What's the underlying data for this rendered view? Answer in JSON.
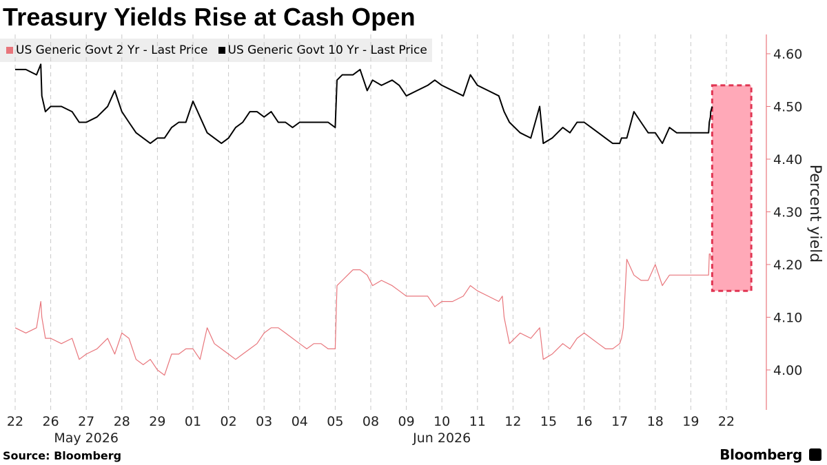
{
  "title": "Treasury Yields Rise at Cash Open",
  "source": "Source: Bloomberg",
  "brand": "Bloomberg",
  "colors": {
    "two_year": "#e8757b",
    "ten_year": "#000000",
    "highlight": "#ffa9b8",
    "highlight_border": "#e03552"
  },
  "chart_data": {
    "type": "line",
    "title": "Treasury Yields Rise at Cash Open",
    "ylabel": "Percent yield",
    "ylim": [
      3.93,
      4.65
    ],
    "yticks": [
      4.0,
      4.1,
      4.2,
      4.3,
      4.4,
      4.5,
      4.6
    ],
    "y_axis_position": "right",
    "grid": "vertical dashed",
    "legend_placement": "top-left",
    "categories": [
      "22",
      "26",
      "27",
      "28",
      "29",
      "01",
      "02",
      "03",
      "04",
      "05",
      "08",
      "09",
      "10",
      "11",
      "12",
      "15",
      "16",
      "17",
      "18",
      "19",
      "22"
    ],
    "month_labels": [
      {
        "label": "May 2026",
        "at": "27"
      },
      {
        "label": "Jun 2026",
        "at": "10"
      }
    ],
    "highlight_region": {
      "from": 19.6,
      "to": 20.7,
      "ymin": 4.15,
      "ymax": 4.54
    },
    "series": [
      {
        "name": "US Generic Govt 2 Yr - Last Price",
        "x": [
          0,
          0.3,
          0.6,
          0.72,
          0.75,
          0.85,
          1.0,
          1.3,
          1.6,
          1.8,
          2.0,
          2.3,
          2.6,
          2.8,
          3.0,
          3.2,
          3.4,
          3.6,
          3.8,
          4.0,
          4.2,
          4.4,
          4.6,
          4.8,
          5.0,
          5.2,
          5.4,
          5.6,
          5.8,
          6.0,
          6.2,
          6.4,
          6.6,
          6.8,
          7.0,
          7.2,
          7.4,
          7.6,
          7.8,
          8.0,
          8.2,
          8.4,
          8.6,
          8.8,
          9.0,
          9.05,
          9.2,
          9.5,
          9.7,
          9.9,
          10.05,
          10.3,
          10.6,
          10.8,
          11.0,
          11.3,
          11.6,
          11.8,
          12.0,
          12.3,
          12.6,
          12.8,
          13.0,
          13.3,
          13.6,
          13.7,
          13.75,
          13.9,
          14.2,
          14.5,
          14.75,
          14.85,
          15.1,
          15.4,
          15.6,
          15.8,
          16.0,
          16.2,
          16.4,
          16.6,
          16.8,
          17.0,
          17.05,
          17.1,
          17.2,
          17.4,
          17.6,
          17.8,
          18.0,
          18.2,
          18.4,
          18.6,
          18.8,
          19.0,
          19.5,
          19.52,
          19.55,
          19.56,
          19.6
        ],
        "values": [
          4.08,
          4.07,
          4.08,
          4.13,
          4.1,
          4.06,
          4.06,
          4.05,
          4.06,
          4.02,
          4.03,
          4.04,
          4.06,
          4.03,
          4.07,
          4.06,
          4.02,
          4.01,
          4.02,
          4.0,
          3.99,
          4.03,
          4.03,
          4.04,
          4.04,
          4.02,
          4.08,
          4.05,
          4.04,
          4.03,
          4.02,
          4.03,
          4.04,
          4.05,
          4.07,
          4.08,
          4.08,
          4.07,
          4.06,
          4.05,
          4.04,
          4.05,
          4.05,
          4.04,
          4.04,
          4.16,
          4.17,
          4.19,
          4.19,
          4.18,
          4.16,
          4.17,
          4.16,
          4.15,
          4.14,
          4.14,
          4.14,
          4.12,
          4.13,
          4.13,
          4.14,
          4.16,
          4.15,
          4.14,
          4.13,
          4.14,
          4.1,
          4.05,
          4.07,
          4.06,
          4.08,
          4.02,
          4.03,
          4.05,
          4.04,
          4.06,
          4.07,
          4.06,
          4.05,
          4.04,
          4.04,
          4.05,
          4.06,
          4.08,
          4.21,
          4.18,
          4.17,
          4.17,
          4.2,
          4.16,
          4.18,
          4.18,
          4.18,
          4.18,
          4.18,
          4.22,
          4.22,
          4.21,
          4.21
        ]
      },
      {
        "name": "US Generic Govt 10 Yr - Last Price",
        "x": [
          0,
          0.3,
          0.6,
          0.72,
          0.75,
          0.85,
          1.0,
          1.3,
          1.6,
          1.8,
          2.0,
          2.3,
          2.6,
          2.8,
          3.0,
          3.2,
          3.4,
          3.6,
          3.8,
          4.0,
          4.2,
          4.4,
          4.6,
          4.8,
          5.0,
          5.2,
          5.4,
          5.6,
          5.8,
          6.0,
          6.2,
          6.4,
          6.6,
          6.8,
          7.0,
          7.2,
          7.4,
          7.6,
          7.8,
          8.0,
          8.2,
          8.4,
          8.6,
          8.8,
          9.0,
          9.05,
          9.2,
          9.5,
          9.7,
          9.9,
          10.05,
          10.3,
          10.6,
          10.8,
          11.0,
          11.3,
          11.6,
          11.8,
          12.0,
          12.3,
          12.6,
          12.8,
          13.0,
          13.3,
          13.6,
          13.7,
          13.75,
          13.9,
          14.2,
          14.5,
          14.75,
          14.85,
          15.1,
          15.4,
          15.6,
          15.8,
          16.0,
          16.2,
          16.4,
          16.6,
          16.8,
          17.0,
          17.05,
          17.1,
          17.2,
          17.4,
          17.6,
          17.8,
          18.0,
          18.2,
          18.4,
          18.6,
          18.8,
          19.0,
          19.5,
          19.52,
          19.55,
          19.56,
          19.6
        ],
        "values": [
          4.57,
          4.57,
          4.56,
          4.58,
          4.52,
          4.49,
          4.5,
          4.5,
          4.49,
          4.47,
          4.47,
          4.48,
          4.5,
          4.53,
          4.49,
          4.47,
          4.45,
          4.44,
          4.43,
          4.44,
          4.44,
          4.46,
          4.47,
          4.47,
          4.51,
          4.48,
          4.45,
          4.44,
          4.43,
          4.44,
          4.46,
          4.47,
          4.49,
          4.49,
          4.48,
          4.49,
          4.47,
          4.47,
          4.46,
          4.47,
          4.47,
          4.47,
          4.47,
          4.47,
          4.46,
          4.55,
          4.56,
          4.56,
          4.57,
          4.53,
          4.55,
          4.54,
          4.55,
          4.54,
          4.52,
          4.53,
          4.54,
          4.55,
          4.54,
          4.53,
          4.52,
          4.56,
          4.54,
          4.53,
          4.52,
          4.5,
          4.49,
          4.47,
          4.45,
          4.44,
          4.5,
          4.43,
          4.44,
          4.46,
          4.45,
          4.47,
          4.47,
          4.46,
          4.45,
          4.44,
          4.43,
          4.43,
          4.44,
          4.44,
          4.44,
          4.49,
          4.47,
          4.45,
          4.45,
          4.43,
          4.46,
          4.45,
          4.45,
          4.45,
          4.45,
          4.47,
          4.48,
          4.49,
          4.5
        ]
      }
    ]
  }
}
